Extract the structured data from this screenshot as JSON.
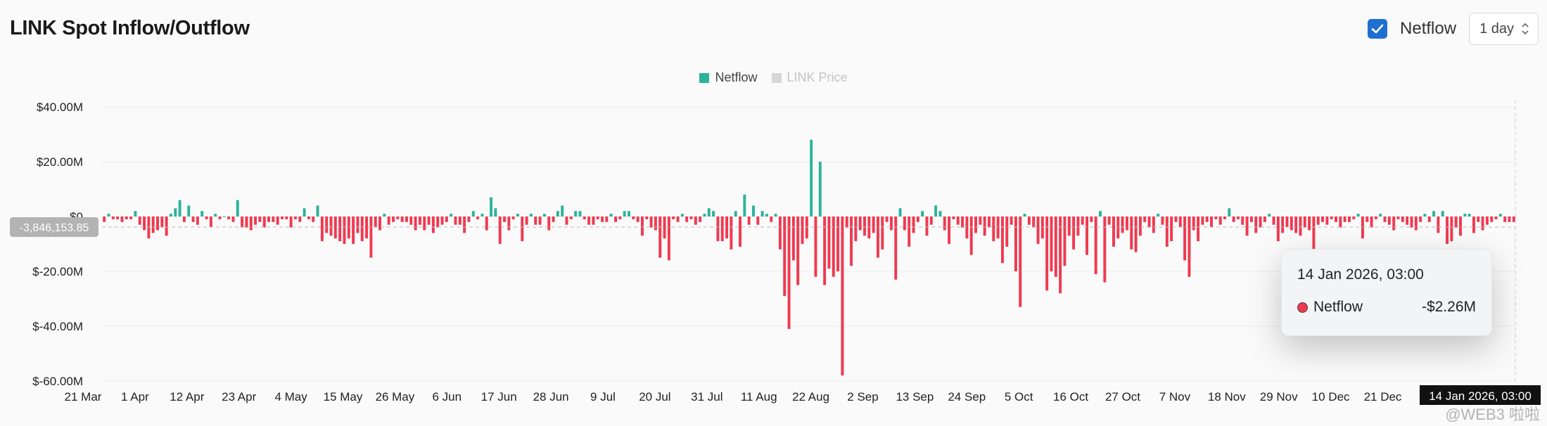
{
  "header": {
    "title": "LINK Spot Inflow/Outflow",
    "netflow_checkbox_label": "Netflow",
    "interval_value": "1 day"
  },
  "legend": [
    {
      "label": "Netflow",
      "color": "#2bb39b",
      "active": true
    },
    {
      "label": "LINK Price",
      "color": "#c9c9c9",
      "active": false
    }
  ],
  "colors": {
    "positive": "#2bb39b",
    "negative": "#f0394f"
  },
  "crosshair": {
    "y_label": "-3,846,153.85",
    "x_label": "14 Jan 2026, 03:00"
  },
  "tooltip": {
    "date": "14 Jan 2026, 03:00",
    "series": "Netflow",
    "value": "-$2.26M"
  },
  "watermark": "@WEB3 啦啦",
  "chart_data": {
    "type": "bar",
    "y_ticks": [
      "$40.00M",
      "$20.00M",
      "$0",
      "$-20.00M",
      "$-40.00M",
      "$-60.00M"
    ],
    "x_ticks": [
      "21 Mar",
      "1 Apr",
      "12 Apr",
      "23 Apr",
      "4 May",
      "15 May",
      "26 May",
      "6 Jun",
      "17 Jun",
      "28 Jun",
      "9 Jul",
      "20 Jul",
      "31 Jul",
      "11 Aug",
      "22 Aug",
      "2 Sep",
      "13 Sep",
      "24 Sep",
      "5 Oct",
      "16 Oct",
      "27 Oct",
      "7 Nov",
      "18 Nov",
      "29 Nov",
      "10 Dec",
      "21 Dec"
    ],
    "ylim": [
      -60,
      40
    ],
    "y_unit": "$M",
    "series": [
      {
        "name": "Netflow",
        "values": [
          -2,
          1,
          -1,
          -1,
          -2,
          -1,
          -1,
          2,
          -3,
          -5,
          -8,
          -6,
          -5,
          -4,
          -7,
          1,
          3,
          6,
          -2,
          4,
          -2,
          -3,
          2,
          -1,
          -4,
          1,
          -1,
          0,
          -1,
          -2,
          6,
          -4,
          -4,
          -5,
          -3,
          -2,
          -4,
          -2,
          -2,
          -3,
          -1,
          -1,
          -4,
          -1,
          -2,
          3,
          -1,
          -2,
          4,
          -9,
          -6,
          -7,
          -8,
          -9,
          -10,
          -8,
          -10,
          -6,
          -9,
          -8,
          -15,
          -4,
          -5,
          1,
          -3,
          -2,
          -1,
          -2,
          -2,
          -3,
          -5,
          -3,
          -5,
          -3,
          -6,
          -4,
          -3,
          -2,
          1,
          -3,
          -3,
          -6,
          -2,
          2,
          -1,
          1,
          -5,
          7,
          3,
          -10,
          -2,
          -5,
          -1,
          1,
          -9,
          -3,
          1,
          -3,
          -3,
          1,
          -5,
          -2,
          2,
          4,
          -3,
          -1,
          2,
          2,
          -1,
          -3,
          -3,
          -1,
          -2,
          -2,
          1,
          -2,
          -1,
          2,
          2,
          -1,
          -2,
          -7,
          -1,
          -4,
          -5,
          -15,
          -8,
          -16,
          -1,
          -2,
          1,
          -2,
          -1,
          -3,
          -2,
          1,
          3,
          2,
          -9,
          -9,
          -8,
          -12,
          2,
          -11,
          8,
          -3,
          4,
          -3,
          2,
          1,
          -2,
          1,
          -12,
          -29,
          -41,
          -16,
          -25,
          -10,
          -8,
          28,
          -22,
          20,
          -25,
          -19,
          -22,
          -20,
          -58,
          -4,
          -18,
          -9,
          -5,
          -7,
          -8,
          -6,
          -15,
          -12,
          -2,
          -5,
          -23,
          3,
          -5,
          -11,
          -6,
          -2,
          2,
          -7,
          -3,
          4,
          2,
          -5,
          -10,
          -1,
          -3,
          -4,
          -8,
          -14,
          -6,
          -3,
          -7,
          -4,
          -9,
          -8,
          -17,
          -11,
          -3,
          -20,
          -33,
          1,
          -3,
          -4,
          -10,
          -8,
          -27,
          -20,
          -22,
          -28,
          -18,
          -7,
          -12,
          -7,
          -3,
          -14,
          -2,
          -21,
          2,
          -24,
          -3,
          -11,
          -8,
          -6,
          -5,
          -12,
          -13,
          -7,
          -2,
          -4,
          -6,
          1,
          -3,
          -11,
          -9,
          -2,
          -4,
          -16,
          -22,
          -5,
          -9,
          -3,
          -2,
          -4,
          -1,
          -3,
          -1,
          3,
          -2,
          -1,
          -3,
          -7,
          -2,
          -6,
          -4,
          -2,
          1,
          -3,
          -9,
          -6,
          -4,
          -5,
          -6,
          -7,
          -4,
          -5,
          -13,
          -3,
          -2,
          -3,
          -1,
          -2,
          -4,
          -2,
          -2,
          -1,
          1,
          -8,
          -2,
          -4,
          -1,
          1,
          -2,
          -3,
          -5,
          -1,
          -2,
          -3,
          -4,
          -5,
          -2,
          1,
          -2,
          2,
          -6,
          2,
          -10,
          -9,
          -4,
          -7,
          1,
          1,
          -6,
          -2,
          -5,
          -3,
          -2,
          -1,
          1,
          -2,
          -2,
          -2
        ]
      }
    ]
  }
}
